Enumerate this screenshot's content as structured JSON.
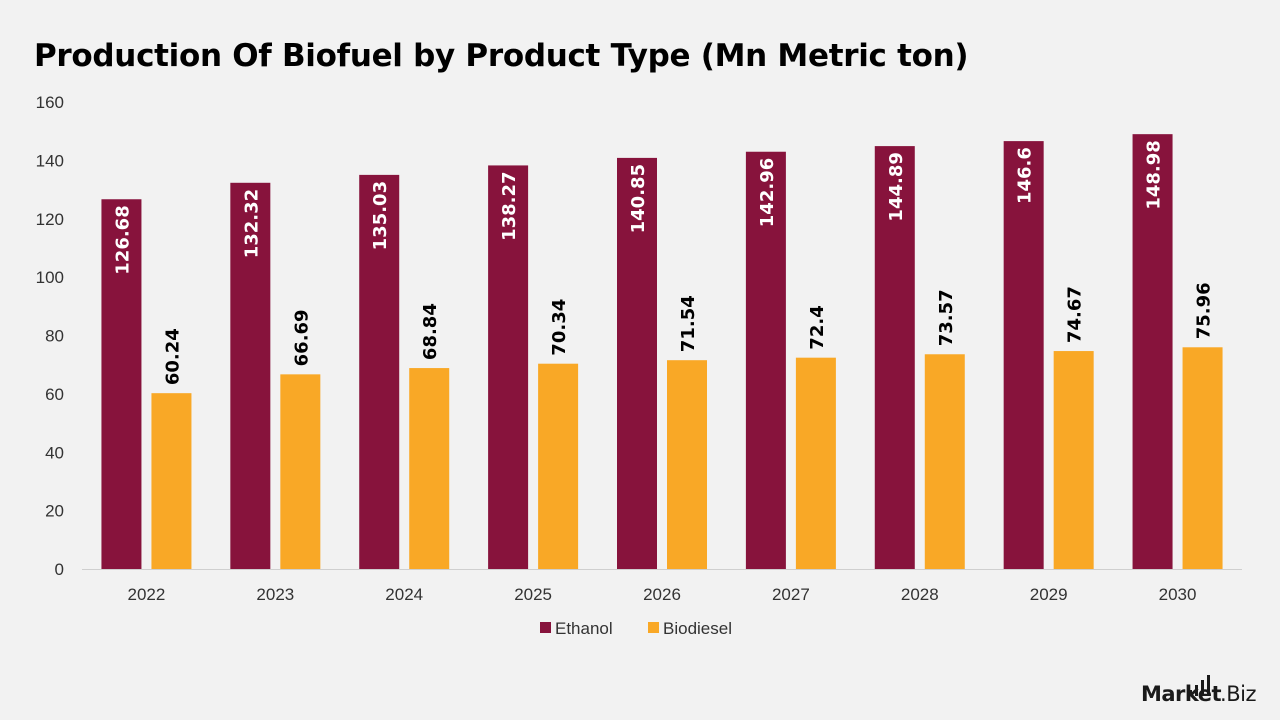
{
  "chart_data": {
    "type": "bar",
    "title": "Production Of Biofuel by Product Type (Mn Metric ton)",
    "categories": [
      "2022",
      "2023",
      "2024",
      "2025",
      "2026",
      "2027",
      "2028",
      "2029",
      "2030"
    ],
    "series": [
      {
        "name": "Ethanol",
        "color": "#87133c",
        "label_color": "#ffffff",
        "values": [
          126.68,
          132.32,
          135.03,
          138.27,
          140.85,
          142.96,
          144.89,
          146.6,
          148.98
        ]
      },
      {
        "name": "Biodiesel",
        "color": "#f9a826",
        "label_color": "#000000",
        "values": [
          60.24,
          66.69,
          68.84,
          70.34,
          71.54,
          72.4,
          73.57,
          74.67,
          75.96
        ]
      }
    ],
    "yticks": [
      "0",
      "20",
      "40",
      "60",
      "80",
      "100",
      "120",
      "140",
      "160"
    ],
    "ylim": [
      0,
      160
    ],
    "grid": false,
    "legend_position": "bottom-center"
  },
  "brand": {
    "name_strong": "Market",
    "name_light": ".Biz"
  }
}
